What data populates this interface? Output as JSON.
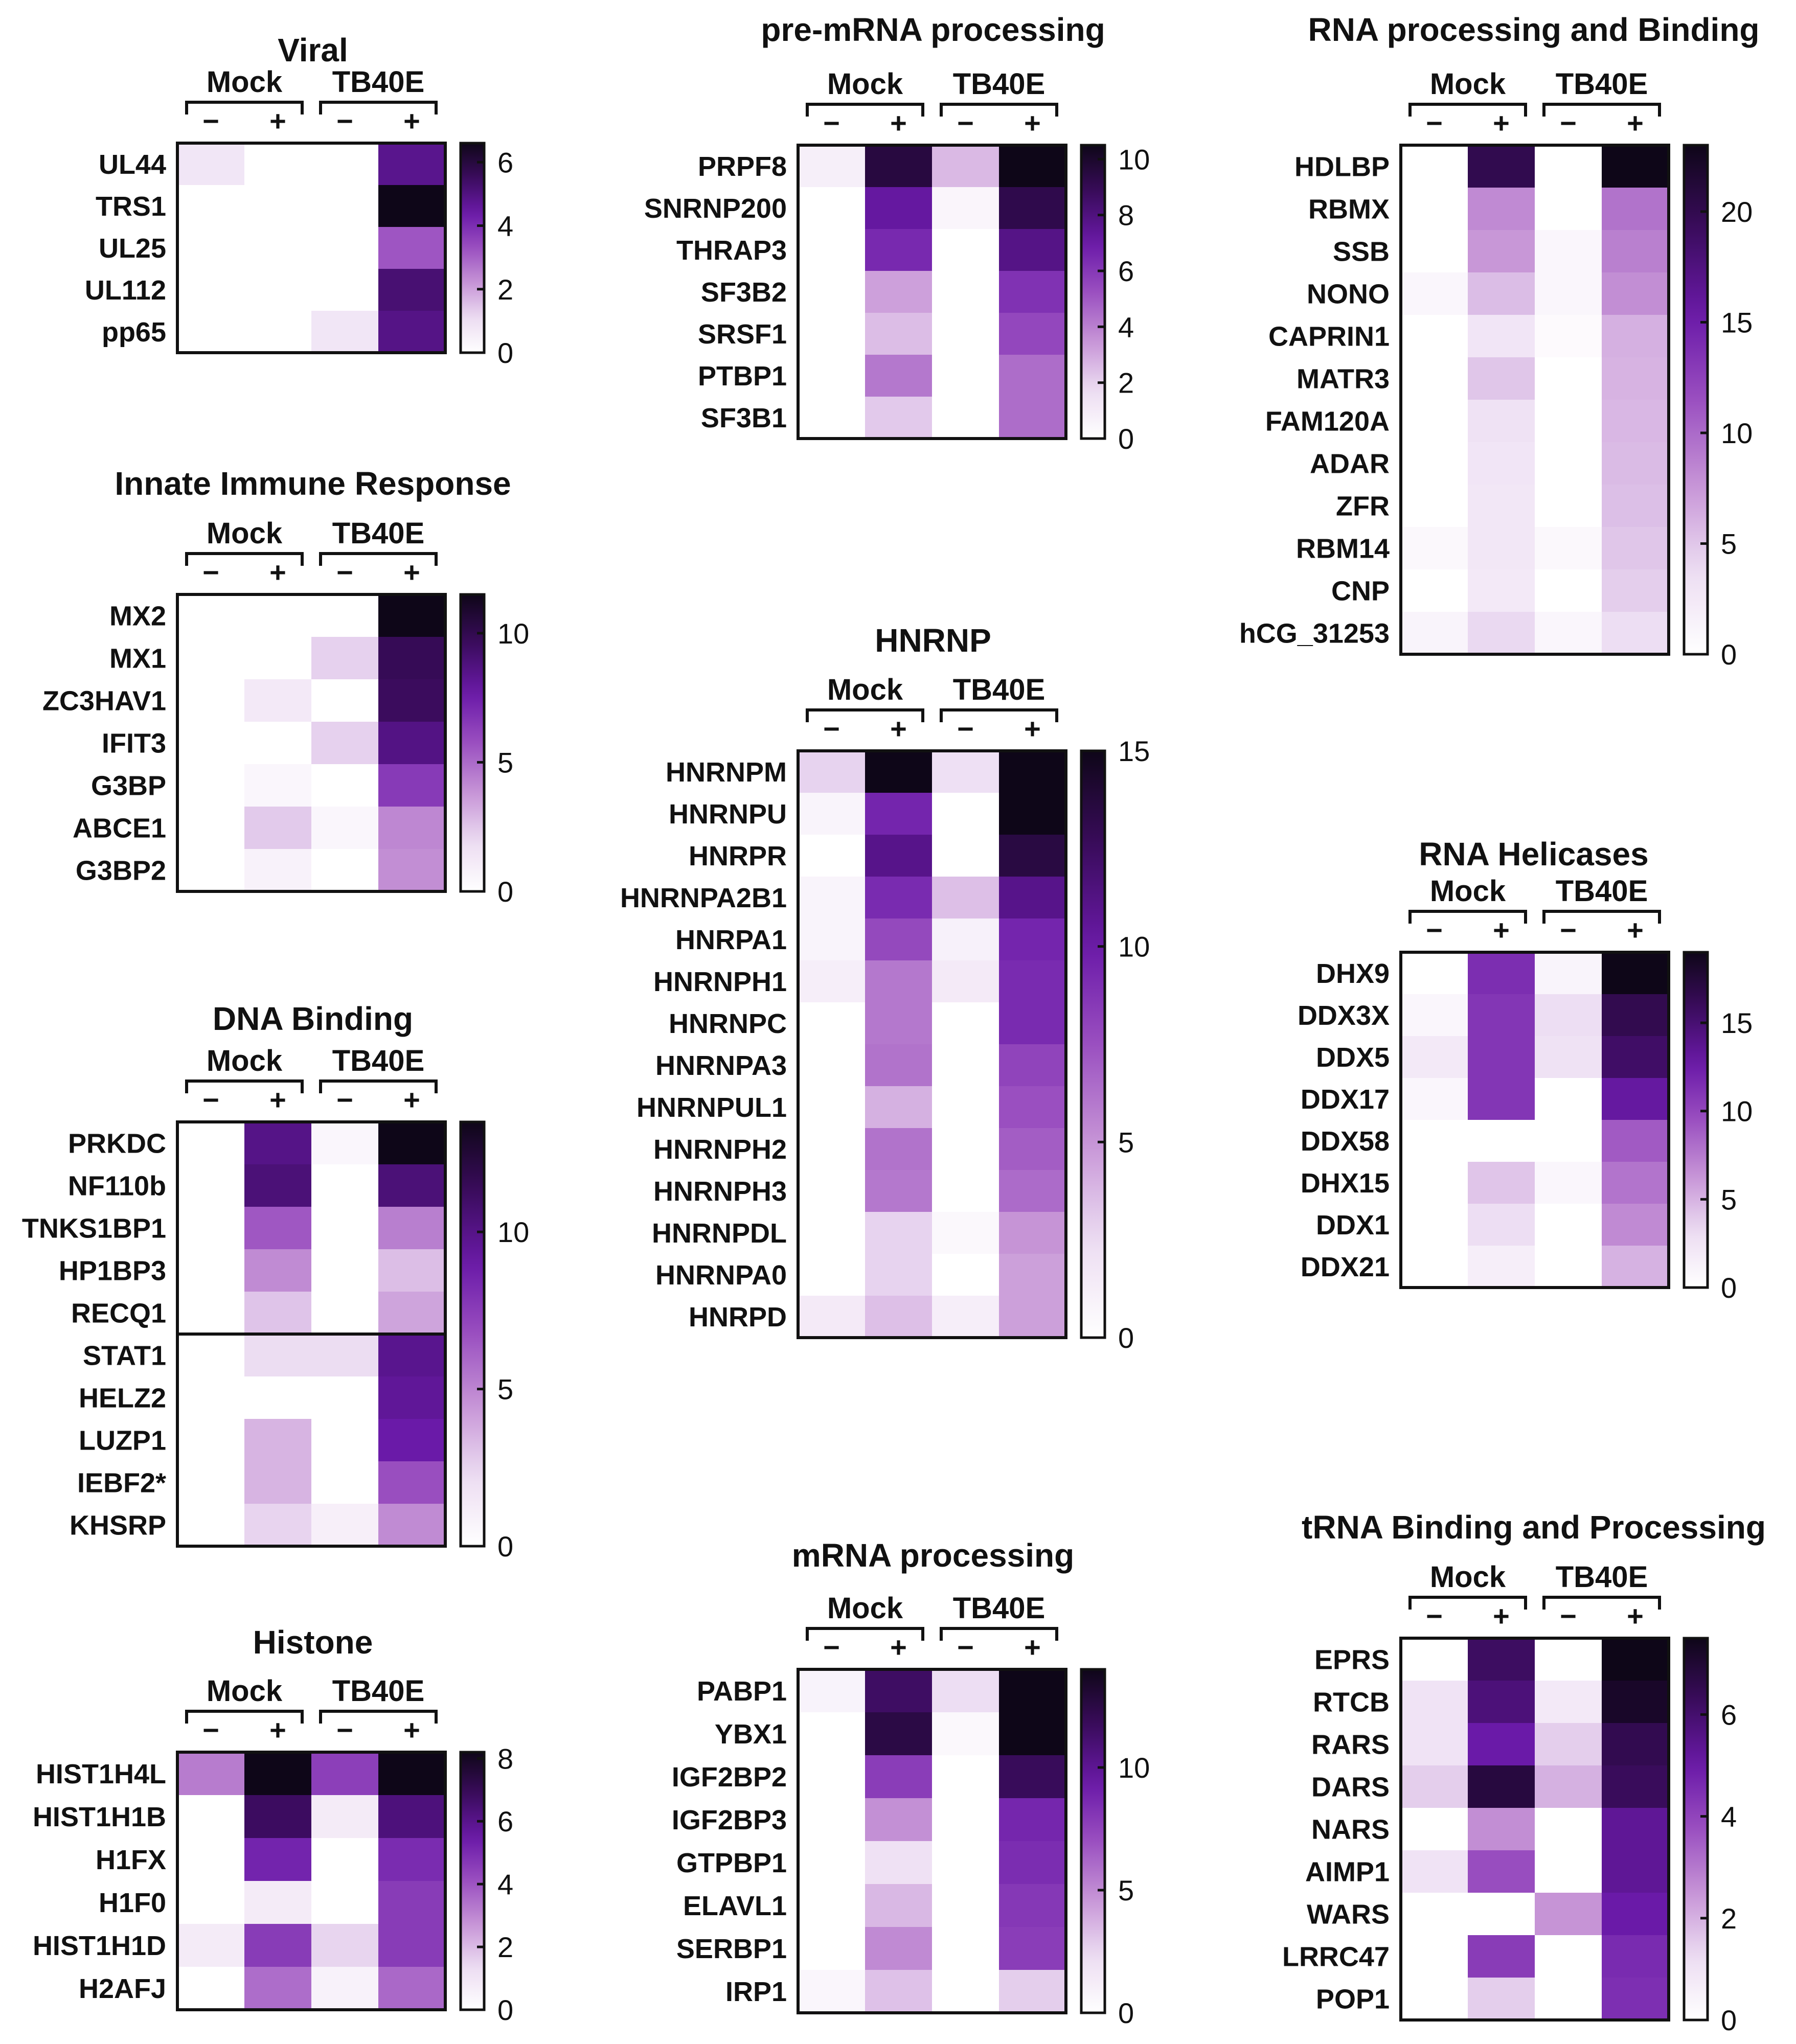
{
  "colors": {
    "low": "#ffffff",
    "high": "#0e0618",
    "ramp": [
      "#ffffff",
      "#ecdcf2",
      "#c694d6",
      "#9a4fc0",
      "#6a1aa8",
      "#3b0c5e",
      "#0e0618"
    ]
  },
  "group_labels": {
    "left": "Mock",
    "right": "TB40E"
  },
  "condition_labels": [
    "−",
    "+",
    "−",
    "+"
  ],
  "chart_data": [
    {
      "id": "viral",
      "type": "heatmap",
      "title": "Viral",
      "columns": [
        "Mock −",
        "Mock +",
        "TB40E −",
        "TB40E +"
      ],
      "rows": [
        "UL44",
        "TRS1",
        "UL25",
        "UL112",
        "pp65"
      ],
      "values": [
        [
          0.8,
          0,
          0,
          4.8
        ],
        [
          0,
          0,
          0,
          6.6
        ],
        [
          0,
          0,
          0,
          3.2
        ],
        [
          0,
          0,
          0,
          5.2
        ],
        [
          0,
          0,
          0.8,
          4.9
        ]
      ],
      "vmax": 6.6,
      "ticks": [
        0,
        2,
        4,
        6
      ]
    },
    {
      "id": "innate",
      "type": "heatmap",
      "title": "Innate Immune Response",
      "columns": [
        "Mock −",
        "Mock +",
        "TB40E −",
        "TB40E +"
      ],
      "rows": [
        "MX2",
        "MX1",
        "ZC3HAV1",
        "IFIT3",
        "G3BP",
        "ABCE1",
        "G3BP2"
      ],
      "values": [
        [
          0,
          0,
          0,
          11.5
        ],
        [
          0,
          0,
          2.2,
          9.8
        ],
        [
          0,
          1.2,
          0,
          9.6
        ],
        [
          0,
          0,
          2.2,
          8.6
        ],
        [
          0,
          0.5,
          0,
          6.5
        ],
        [
          0,
          2.4,
          0.5,
          4.2
        ],
        [
          0,
          0.7,
          0,
          4.0
        ]
      ],
      "vmax": 11.5,
      "ticks": [
        0,
        5,
        10
      ]
    },
    {
      "id": "dna",
      "type": "heatmap",
      "title": "DNA Binding",
      "columns": [
        "Mock −",
        "Mock +",
        "TB40E −",
        "TB40E +"
      ],
      "rows": [
        "PRKDC",
        "NF110b",
        "TNKS1BP1",
        "HP1BP3",
        "RECQ1",
        "STAT1",
        "HELZ2",
        "LUZP1",
        "IEBF2*",
        "KHSRP"
      ],
      "values": [
        [
          0,
          10,
          0.6,
          13.5
        ],
        [
          0,
          10.5,
          0,
          10.5
        ],
        [
          0,
          6.5,
          0,
          5.2
        ],
        [
          0,
          4.8,
          0,
          3.2
        ],
        [
          0,
          3.0,
          0,
          4.0
        ],
        [
          0,
          2.2,
          2.2,
          9.8
        ],
        [
          0,
          0,
          0,
          9.5
        ],
        [
          0,
          3.5,
          0,
          9.0
        ],
        [
          0,
          3.5,
          0,
          6.8
        ],
        [
          0,
          2.5,
          1.0,
          4.8
        ]
      ],
      "vmax": 13.5,
      "ticks": [
        0,
        5,
        10
      ],
      "separator_after": 5
    },
    {
      "id": "histone",
      "type": "heatmap",
      "title": "Histone",
      "columns": [
        "Mock −",
        "Mock +",
        "TB40E −",
        "TB40E +"
      ],
      "rows": [
        "HIST1H4L",
        "HIST1H1B",
        "H1FX",
        "H1F0",
        "HIST1H1D",
        "H2AFJ"
      ],
      "values": [
        [
          3.2,
          8.2,
          4.5,
          8.2
        ],
        [
          0,
          6.8,
          0.8,
          6.3
        ],
        [
          0,
          5.2,
          0,
          5.0
        ],
        [
          0,
          0.8,
          0,
          4.6
        ],
        [
          0.8,
          4.6,
          1.5,
          4.6
        ],
        [
          0,
          3.5,
          0.5,
          3.6
        ]
      ],
      "vmax": 8.2,
      "ticks": [
        0,
        2,
        4,
        6,
        8
      ]
    },
    {
      "id": "premrna",
      "type": "heatmap",
      "title": "pre-mRNA processing",
      "columns": [
        "Mock −",
        "Mock +",
        "TB40E −",
        "TB40E +"
      ],
      "rows": [
        "PRPF8",
        "SNRNP200",
        "THRAP3",
        "SF3B2",
        "SRSF1",
        "PTBP1",
        "SF3B1"
      ],
      "values": [
        [
          0.8,
          9.5,
          2.6,
          10.5
        ],
        [
          0,
          7.2,
          0.5,
          9.2
        ],
        [
          0,
          6.5,
          0,
          7.8
        ],
        [
          0,
          3.2,
          0,
          6.2
        ],
        [
          0,
          2.5,
          0,
          5.5
        ],
        [
          0,
          4.2,
          0,
          4.5
        ],
        [
          0,
          2.2,
          0,
          4.5
        ]
      ],
      "vmax": 10.5,
      "ticks": [
        0,
        2,
        4,
        6,
        8,
        10
      ]
    },
    {
      "id": "hnrnp",
      "type": "heatmap",
      "title": "HNRNP",
      "columns": [
        "Mock −",
        "Mock +",
        "TB40E −",
        "TB40E +"
      ],
      "rows": [
        "HNRNPM",
        "HNRNPU",
        "HNRPR",
        "HNRNPA2B1",
        "HNRPA1",
        "HNRNPH1",
        "HNRNPC",
        "HNRNPA3",
        "HNRNPUL1",
        "HNRNPH2",
        "HNRNPH3",
        "HNRNPDL",
        "HNRNPA0",
        "HNRPD"
      ],
      "values": [
        [
          2.8,
          15,
          2.2,
          15
        ],
        [
          0.8,
          9.5,
          0,
          15
        ],
        [
          0,
          11,
          0,
          13.5
        ],
        [
          0.8,
          9.2,
          3.5,
          11
        ],
        [
          0.8,
          7.8,
          1.0,
          9.5
        ],
        [
          1.2,
          6.0,
          1.5,
          9.2
        ],
        [
          0,
          6.0,
          0,
          9.2
        ],
        [
          0,
          6.2,
          0,
          8.0
        ],
        [
          0,
          4.0,
          0,
          7.5
        ],
        [
          0,
          6.2,
          0,
          7.0
        ],
        [
          0,
          6.0,
          0,
          6.5
        ],
        [
          0,
          2.8,
          0.5,
          5.0
        ],
        [
          0,
          2.8,
          0,
          4.6
        ],
        [
          1.5,
          3.5,
          1.2,
          4.6
        ]
      ],
      "vmax": 15,
      "ticks": [
        0,
        5,
        10,
        15
      ]
    },
    {
      "id": "mrna",
      "type": "heatmap",
      "title": "mRNA processing",
      "columns": [
        "Mock −",
        "Mock +",
        "TB40E −",
        "TB40E +"
      ],
      "rows": [
        "PABP1",
        "YBX1",
        "IGF2BP2",
        "IGF2BP3",
        "GTPBP1",
        "ELAVL1",
        "SERBP1",
        "IRP1"
      ],
      "values": [
        [
          0.8,
          11.5,
          2.2,
          14
        ],
        [
          0,
          12.5,
          0.5,
          14
        ],
        [
          0,
          7.8,
          0,
          11.8
        ],
        [
          0,
          4.8,
          0,
          8.8
        ],
        [
          0,
          2.0,
          0,
          8.5
        ],
        [
          0,
          3.5,
          0,
          8.0
        ],
        [
          0,
          5.0,
          0,
          7.8
        ],
        [
          0.6,
          3.2,
          0,
          2.8
        ]
      ],
      "vmax": 14,
      "ticks": [
        0,
        5,
        10
      ]
    },
    {
      "id": "rnabind",
      "type": "heatmap",
      "title": "RNA processing and Binding",
      "columns": [
        "Mock −",
        "Mock +",
        "TB40E −",
        "TB40E +"
      ],
      "rows": [
        "HDLBP",
        "RBMX",
        "SSB",
        "NONO",
        "CAPRIN1",
        "MATR3",
        "FAM120A",
        "ADAR",
        "ZFR",
        "RBM14",
        "CNP",
        "hCG_31253"
      ],
      "values": [
        [
          0,
          20,
          0,
          23
        ],
        [
          0,
          8.2,
          0,
          9.5
        ],
        [
          0,
          7.5,
          1.0,
          8.8
        ],
        [
          1.0,
          5.5,
          1.0,
          8.0
        ],
        [
          0,
          2.8,
          0.5,
          6.2
        ],
        [
          0,
          5.0,
          0,
          6.0
        ],
        [
          0,
          3.2,
          0,
          5.8
        ],
        [
          0,
          2.8,
          0,
          5.6
        ],
        [
          0,
          2.6,
          0,
          5.4
        ],
        [
          0.8,
          2.6,
          0.8,
          5.0
        ],
        [
          0,
          2.4,
          0,
          4.6
        ],
        [
          1.2,
          4.0,
          1.0,
          3.6
        ]
      ],
      "vmax": 23,
      "ticks": [
        0,
        5,
        10,
        15,
        20
      ]
    },
    {
      "id": "helicase",
      "type": "heatmap",
      "title": "RNA Helicases",
      "columns": [
        "Mock −",
        "Mock +",
        "TB40E −",
        "TB40E +"
      ],
      "rows": [
        "DHX9",
        "DDX3X",
        "DDX5",
        "DDX17",
        "DDX58",
        "DHX15",
        "DDX1",
        "DDX21"
      ],
      "values": [
        [
          0,
          11.5,
          1.0,
          19
        ],
        [
          0.8,
          11,
          3.0,
          16.5
        ],
        [
          2.0,
          11,
          2.6,
          15.5
        ],
        [
          0.8,
          11,
          0,
          13
        ],
        [
          0,
          0,
          0,
          9.0
        ],
        [
          0,
          4.2,
          0.8,
          7.8
        ],
        [
          0,
          3.0,
          0,
          6.8
        ],
        [
          0,
          1.5,
          0,
          5.0
        ]
      ],
      "vmax": 19,
      "ticks": [
        0,
        5,
        10,
        15
      ]
    },
    {
      "id": "trna",
      "type": "heatmap",
      "title": "tRNA Binding and Processing",
      "columns": [
        "Mock −",
        "Mock +",
        "TB40E −",
        "TB40E +"
      ],
      "rows": [
        "EPRS",
        "RTCB",
        "RARS",
        "DARS",
        "NARS",
        "AIMP1",
        "WARS",
        "LRRC47",
        "POP1"
      ],
      "values": [
        [
          0,
          6.2,
          0,
          7.5
        ],
        [
          1.0,
          5.8,
          0.8,
          7.2
        ],
        [
          1.0,
          5.0,
          1.5,
          6.5
        ],
        [
          1.5,
          6.8,
          2.0,
          6.3
        ],
        [
          0,
          2.6,
          0,
          5.3
        ],
        [
          1.0,
          3.8,
          0,
          5.3
        ],
        [
          0,
          0,
          2.5,
          5.0
        ],
        [
          0,
          4.2,
          0,
          4.6
        ],
        [
          0,
          1.5,
          0,
          4.5
        ]
      ],
      "vmax": 7.5,
      "ticks": [
        0,
        2,
        4,
        6
      ]
    }
  ]
}
